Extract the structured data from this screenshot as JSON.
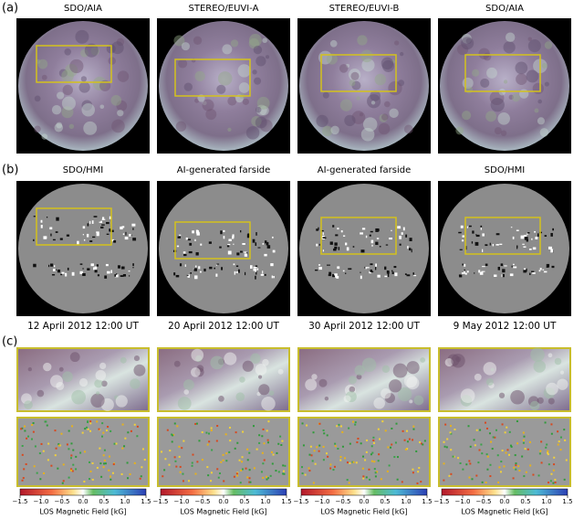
{
  "panels": {
    "a": {
      "label": "(a)",
      "titles": [
        "SDO/AIA",
        "STEREO/EUVI-A",
        "STEREO/EUVI-B",
        "SDO/AIA"
      ]
    },
    "b": {
      "label": "(b)",
      "titles": [
        "SDO/HMI",
        "AI-generated farside",
        "AI-generated farside",
        "SDO/HMI"
      ]
    },
    "c": {
      "label": "(c)"
    }
  },
  "dates": [
    "12 April 2012 12:00 UT",
    "20 April 2012 12:00 UT",
    "30 April 2012 12:00 UT",
    "9 May 2012 12:00 UT"
  ],
  "colorbar": {
    "ticks": [
      "−1.5",
      "−1.0",
      "−0.5",
      "0.0",
      "0.5",
      "1.0",
      "1.5"
    ],
    "label": "LOS Magnetic Field [kG]"
  }
}
